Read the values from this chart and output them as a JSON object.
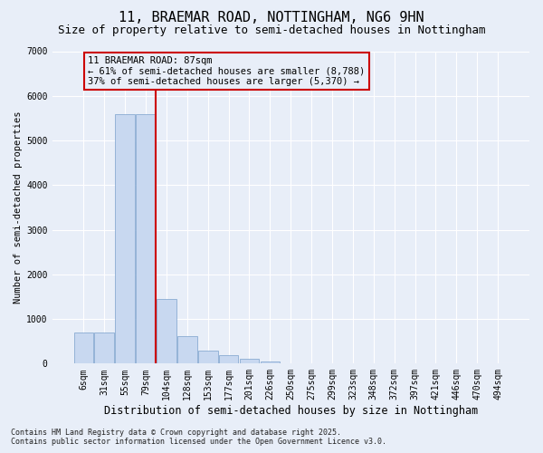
{
  "title": "11, BRAEMAR ROAD, NOTTINGHAM, NG6 9HN",
  "subtitle": "Size of property relative to semi-detached houses in Nottingham",
  "xlabel": "Distribution of semi-detached houses by size in Nottingham",
  "ylabel": "Number of semi-detached properties",
  "categories": [
    "6sqm",
    "31sqm",
    "55sqm",
    "79sqm",
    "104sqm",
    "128sqm",
    "153sqm",
    "177sqm",
    "201sqm",
    "226sqm",
    "250sqm",
    "275sqm",
    "299sqm",
    "323sqm",
    "348sqm",
    "372sqm",
    "397sqm",
    "421sqm",
    "446sqm",
    "470sqm",
    "494sqm"
  ],
  "values": [
    700,
    700,
    5580,
    5580,
    1450,
    620,
    300,
    190,
    100,
    50,
    0,
    0,
    0,
    0,
    0,
    0,
    0,
    0,
    0,
    0,
    0
  ],
  "bar_color_normal": "#c8d8f0",
  "bar_edgecolor": "#7aa0cc",
  "vline_color": "#cc0000",
  "vline_x": 3.5,
  "annotation_text": "11 BRAEMAR ROAD: 87sqm\n← 61% of semi-detached houses are smaller (8,788)\n37% of semi-detached houses are larger (5,370) →",
  "annotation_box_edgecolor": "#cc0000",
  "footer_line1": "Contains HM Land Registry data © Crown copyright and database right 2025.",
  "footer_line2": "Contains public sector information licensed under the Open Government Licence v3.0.",
  "ylim": [
    0,
    7000
  ],
  "yticks": [
    0,
    1000,
    2000,
    3000,
    4000,
    5000,
    6000,
    7000
  ],
  "background_color": "#e8eef8",
  "grid_color": "#ffffff",
  "title_fontsize": 11,
  "subtitle_fontsize": 9,
  "xlabel_fontsize": 8.5,
  "ylabel_fontsize": 7.5,
  "tick_fontsize": 7
}
